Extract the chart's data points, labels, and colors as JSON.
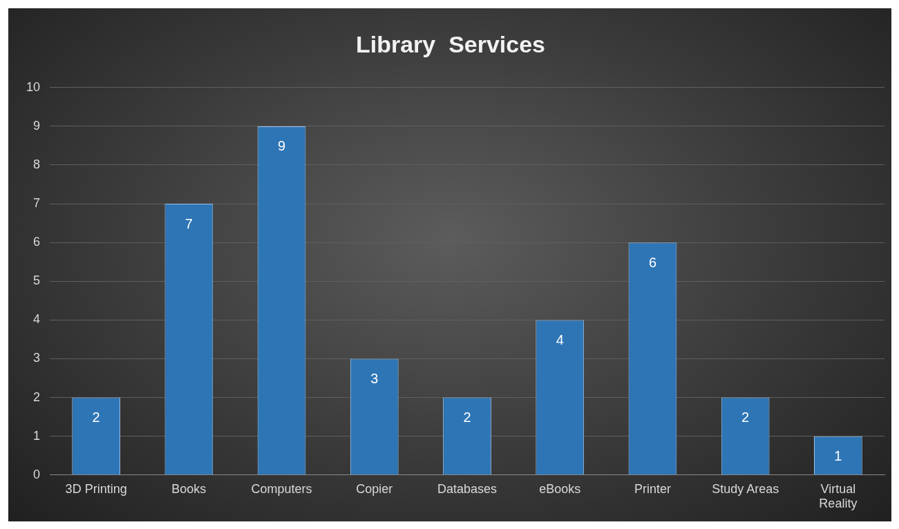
{
  "chart_data": {
    "type": "bar",
    "title": "Library  Services",
    "categories": [
      "3D Printing",
      "Books",
      "Computers",
      "Copier",
      "Databases",
      "eBooks",
      "Printer",
      "Study Areas",
      "Virtual Reality"
    ],
    "values": [
      2,
      7,
      9,
      3,
      2,
      4,
      6,
      2,
      1
    ],
    "color": "#2e75b6",
    "ylim": [
      0,
      10
    ],
    "yticks": [
      0,
      1,
      2,
      3,
      4,
      5,
      6,
      7,
      8,
      9,
      10
    ],
    "grid": "y",
    "legend": false,
    "data_labels": true
  }
}
